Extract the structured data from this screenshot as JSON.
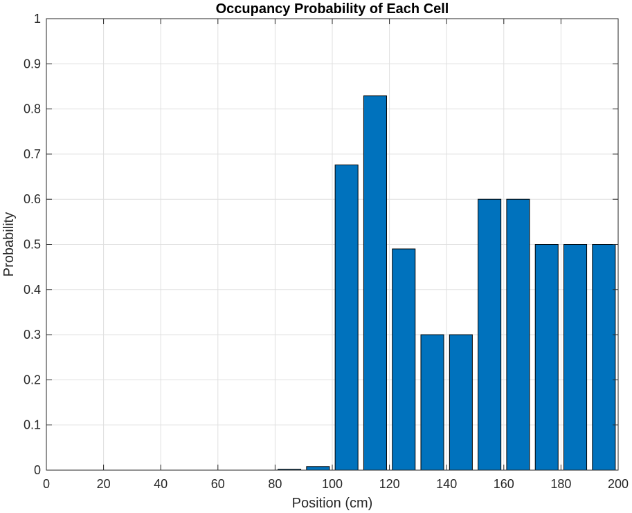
{
  "chart_data": {
    "type": "bar",
    "title": "Occupancy Probability of Each Cell",
    "xlabel": "Position (cm)",
    "ylabel": "Probability",
    "xlim": [
      0,
      200
    ],
    "ylim": [
      0,
      1
    ],
    "grid": true,
    "x_ticks": [
      0,
      20,
      40,
      60,
      80,
      100,
      120,
      140,
      160,
      180,
      200
    ],
    "y_ticks": [
      0,
      0.1,
      0.2,
      0.3,
      0.4,
      0.5,
      0.6,
      0.7,
      0.8,
      0.9,
      1
    ],
    "y_tick_labels": [
      "0",
      "0.1",
      "0.2",
      "0.3",
      "0.4",
      "0.5",
      "0.6",
      "0.7",
      "0.8",
      "0.9",
      "1"
    ],
    "bar_color": "#0072bd",
    "bar_width": 8,
    "x": [
      5,
      15,
      25,
      35,
      45,
      55,
      65,
      75,
      85,
      95,
      105,
      115,
      125,
      135,
      145,
      155,
      165,
      175,
      185,
      195
    ],
    "values": [
      0,
      0,
      0,
      0,
      0,
      0,
      0,
      0,
      0.002,
      0.008,
      0.676,
      0.829,
      0.49,
      0.3,
      0.3,
      0.6,
      0.6,
      0.5,
      0.5,
      0.5
    ]
  }
}
